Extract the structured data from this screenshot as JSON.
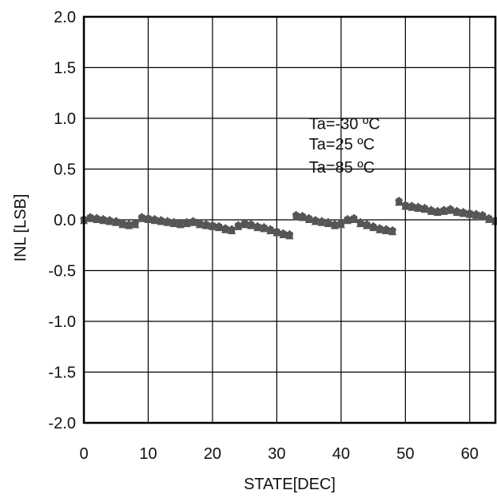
{
  "chart_data": {
    "type": "scatter",
    "title": "",
    "xlabel": "STATE[DEC]",
    "ylabel": "INL [LSB]",
    "xlim": [
      0,
      64
    ],
    "ylim": [
      -2.0,
      2.0
    ],
    "xticks": [
      0,
      10,
      20,
      30,
      40,
      50,
      60
    ],
    "xtick_labels": [
      "0",
      "10",
      "20",
      "30",
      "40",
      "50",
      "60"
    ],
    "yticks": [
      2.0,
      1.5,
      1.0,
      0.5,
      0.0,
      -0.5,
      -1.0,
      -1.5,
      -2.0
    ],
    "ytick_labels": [
      "2.0",
      "1.5",
      "1.0",
      "0.5",
      "0.0",
      "-0.5",
      "-1.0",
      "-1.5",
      "-2.0"
    ],
    "grid": true,
    "legend_position": "top-right",
    "annotations": [
      "Ta=-30 ºC",
      "Ta=25 ºC",
      "Ta=85 ºC"
    ],
    "marker_color": "#555555",
    "series": [
      {
        "name": "Ta=-30 ºC",
        "x": [
          0,
          1,
          2,
          3,
          4,
          5,
          6,
          7,
          8,
          9,
          10,
          11,
          12,
          13,
          14,
          15,
          16,
          17,
          18,
          19,
          20,
          21,
          22,
          23,
          24,
          25,
          26,
          27,
          28,
          29,
          30,
          31,
          32,
          33,
          34,
          35,
          36,
          37,
          38,
          39,
          40,
          41,
          42,
          43,
          44,
          45,
          46,
          47,
          48,
          49,
          50,
          51,
          52,
          53,
          54,
          55,
          56,
          57,
          58,
          59,
          60,
          61,
          62,
          63,
          64
        ],
        "y": [
          0.0,
          0.02,
          0.01,
          0.0,
          -0.01,
          -0.02,
          -0.04,
          -0.05,
          -0.04,
          0.02,
          0.01,
          0.0,
          -0.01,
          -0.02,
          -0.03,
          -0.04,
          -0.03,
          -0.02,
          -0.04,
          -0.05,
          -0.06,
          -0.07,
          -0.09,
          -0.1,
          -0.06,
          -0.04,
          -0.05,
          -0.07,
          -0.08,
          -0.1,
          -0.12,
          -0.14,
          -0.15,
          0.04,
          0.03,
          0.01,
          -0.01,
          -0.02,
          -0.03,
          -0.05,
          -0.04,
          0.0,
          0.01,
          -0.03,
          -0.05,
          -0.07,
          -0.09,
          -0.1,
          -0.11,
          0.18,
          0.14,
          0.13,
          0.12,
          0.11,
          0.09,
          0.08,
          0.09,
          0.1,
          0.08,
          0.07,
          0.06,
          0.05,
          0.04,
          0.01,
          -0.01
        ]
      },
      {
        "name": "Ta=25 ºC",
        "x": [
          0,
          1,
          2,
          3,
          4,
          5,
          6,
          7,
          8,
          9,
          10,
          11,
          12,
          13,
          14,
          15,
          16,
          17,
          18,
          19,
          20,
          21,
          22,
          23,
          24,
          25,
          26,
          27,
          28,
          29,
          30,
          31,
          32,
          33,
          34,
          35,
          36,
          37,
          38,
          39,
          40,
          41,
          42,
          43,
          44,
          45,
          46,
          47,
          48,
          49,
          50,
          51,
          52,
          53,
          54,
          55,
          56,
          57,
          58,
          59,
          60,
          61,
          62,
          63,
          64
        ],
        "y": [
          -0.01,
          0.01,
          0.0,
          -0.01,
          -0.02,
          -0.03,
          -0.05,
          -0.06,
          -0.05,
          0.01,
          0.0,
          -0.01,
          -0.02,
          -0.03,
          -0.04,
          -0.05,
          -0.04,
          -0.03,
          -0.05,
          -0.06,
          -0.07,
          -0.08,
          -0.1,
          -0.11,
          -0.07,
          -0.05,
          -0.06,
          -0.08,
          -0.09,
          -0.11,
          -0.13,
          -0.15,
          -0.16,
          0.03,
          0.02,
          0.0,
          -0.02,
          -0.03,
          -0.04,
          -0.06,
          -0.05,
          -0.01,
          0.0,
          -0.04,
          -0.06,
          -0.08,
          -0.1,
          -0.11,
          -0.12,
          0.17,
          0.13,
          0.12,
          0.11,
          0.1,
          0.08,
          0.07,
          0.08,
          0.09,
          0.07,
          0.06,
          0.05,
          0.04,
          0.03,
          0.0,
          -0.02
        ]
      },
      {
        "name": "Ta=85 ºC",
        "x": [
          0,
          1,
          2,
          3,
          4,
          5,
          6,
          7,
          8,
          9,
          10,
          11,
          12,
          13,
          14,
          15,
          16,
          17,
          18,
          19,
          20,
          21,
          22,
          23,
          24,
          25,
          26,
          27,
          28,
          29,
          30,
          31,
          32,
          33,
          34,
          35,
          36,
          37,
          38,
          39,
          40,
          41,
          42,
          43,
          44,
          45,
          46,
          47,
          48,
          49,
          50,
          51,
          52,
          53,
          54,
          55,
          56,
          57,
          58,
          59,
          60,
          61,
          62,
          63,
          64
        ],
        "y": [
          0.01,
          0.03,
          0.02,
          0.01,
          0.0,
          -0.01,
          -0.03,
          -0.04,
          -0.03,
          0.03,
          0.02,
          0.01,
          0.0,
          -0.01,
          -0.02,
          -0.03,
          -0.02,
          -0.01,
          -0.03,
          -0.04,
          -0.05,
          -0.06,
          -0.08,
          -0.09,
          -0.05,
          -0.03,
          -0.04,
          -0.06,
          -0.07,
          -0.09,
          -0.11,
          -0.13,
          -0.14,
          0.05,
          0.04,
          0.02,
          0.0,
          -0.01,
          -0.02,
          -0.04,
          -0.03,
          0.01,
          0.02,
          -0.02,
          -0.04,
          -0.06,
          -0.08,
          -0.09,
          -0.1,
          0.19,
          0.15,
          0.14,
          0.13,
          0.12,
          0.1,
          0.09,
          0.1,
          0.11,
          0.09,
          0.08,
          0.07,
          0.06,
          0.05,
          0.02,
          0.0
        ]
      }
    ]
  }
}
